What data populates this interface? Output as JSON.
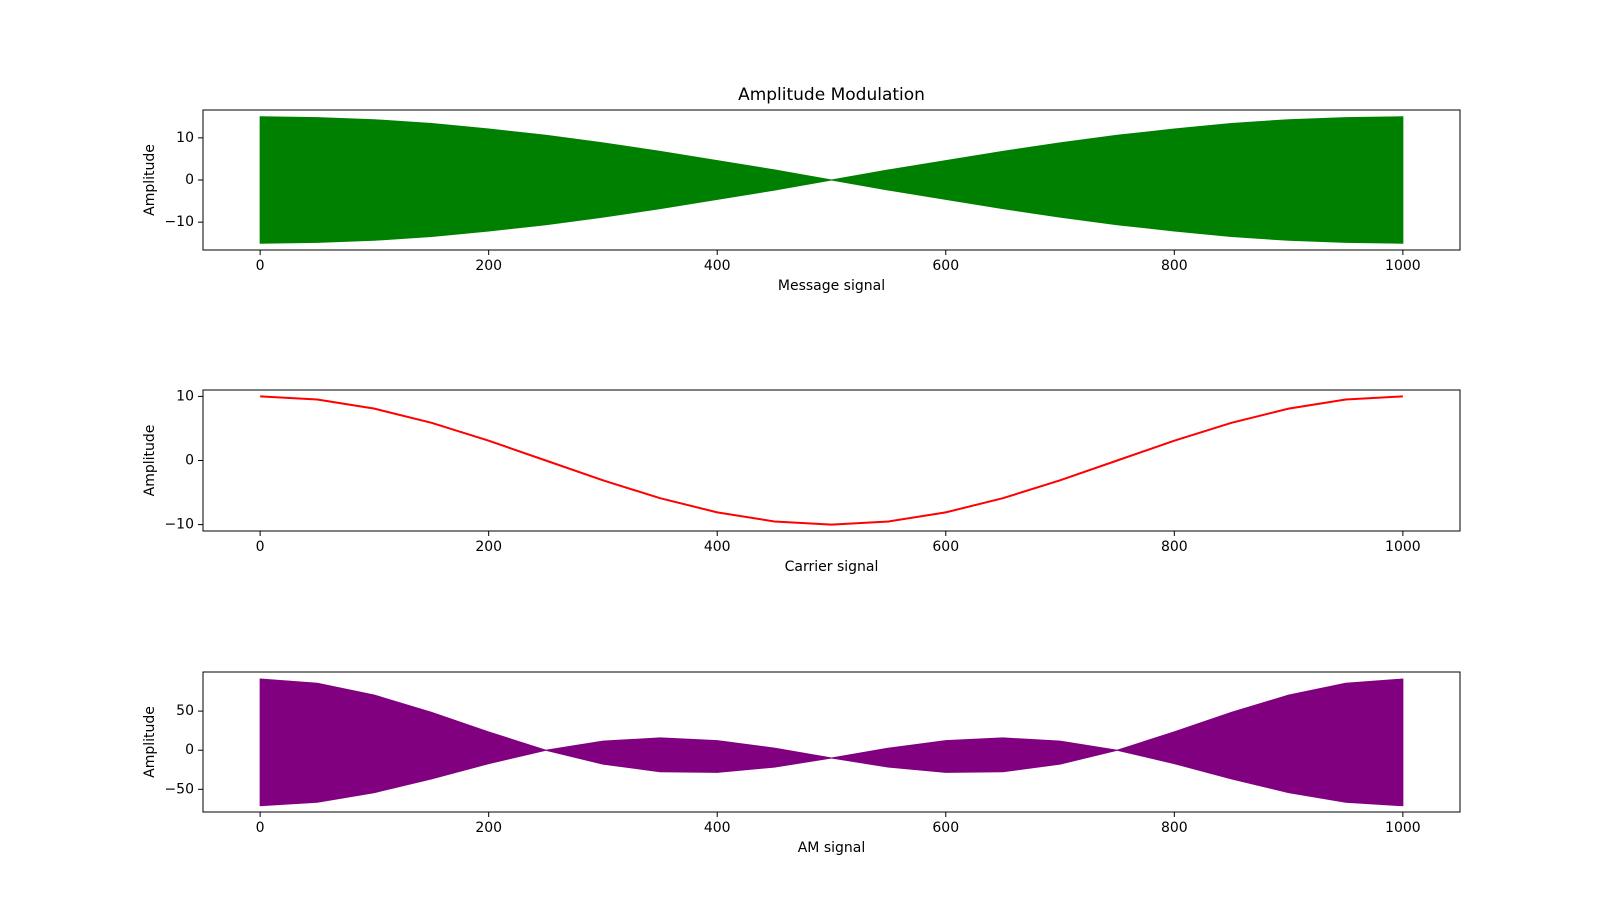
{
  "chart_data": [
    {
      "type": "band",
      "title": "Amplitude Modulation",
      "xlabel": "Message signal",
      "ylabel": "Amplitude",
      "color": "#008000",
      "x": [
        0,
        50,
        100,
        150,
        200,
        250,
        300,
        350,
        400,
        450,
        500,
        550,
        600,
        650,
        700,
        750,
        800,
        850,
        900,
        950,
        1000
      ],
      "upper": [
        15,
        14.8,
        14.3,
        13.4,
        12.1,
        10.6,
        8.8,
        6.8,
        4.6,
        2.4,
        0,
        2.4,
        4.6,
        6.8,
        8.8,
        10.6,
        12.1,
        13.4,
        14.3,
        14.8,
        15
      ],
      "lower": [
        -15,
        -14.8,
        -14.3,
        -13.4,
        -12.1,
        -10.6,
        -8.8,
        -6.8,
        -4.6,
        -2.4,
        0,
        -2.4,
        -4.6,
        -6.8,
        -8.8,
        -10.6,
        -12.1,
        -13.4,
        -14.3,
        -14.8,
        -15
      ],
      "xlim": [
        -50,
        1050
      ],
      "ylim": [
        -16.6,
        16.6
      ],
      "xticks": [
        0,
        200,
        400,
        600,
        800,
        1000
      ],
      "yticks": [
        {
          "value": -10,
          "label": "−10"
        },
        0,
        10
      ]
    },
    {
      "type": "line",
      "xlabel": "Carrier signal",
      "ylabel": "Amplitude",
      "color": "#ff0000",
      "x": [
        0,
        50,
        100,
        150,
        200,
        250,
        300,
        350,
        400,
        450,
        500,
        550,
        600,
        650,
        700,
        750,
        800,
        850,
        900,
        950,
        1000
      ],
      "values": [
        10,
        9.51,
        8.09,
        5.88,
        3.09,
        0,
        -3.09,
        -5.88,
        -8.09,
        -9.51,
        -10,
        -9.51,
        -8.09,
        -5.88,
        -3.09,
        0,
        3.09,
        5.88,
        8.09,
        9.51,
        10
      ],
      "xlim": [
        -50,
        1050
      ],
      "ylim": [
        -11,
        11
      ],
      "xticks": [
        0,
        200,
        400,
        600,
        800,
        1000
      ],
      "yticks": [
        {
          "value": -10,
          "label": "−10"
        },
        0,
        10
      ]
    },
    {
      "type": "band",
      "xlabel": "AM signal",
      "ylabel": "Amplitude",
      "color": "#800080",
      "x": [
        0,
        50,
        100,
        150,
        200,
        250,
        300,
        350,
        400,
        450,
        500,
        550,
        600,
        650,
        700,
        750,
        800,
        850,
        900,
        950,
        1000
      ],
      "upper": [
        91,
        85.6,
        70.4,
        48.4,
        23.4,
        0,
        11.6,
        15.7,
        12.2,
        2.6,
        -10,
        2.6,
        12.2,
        15.7,
        11.6,
        0,
        23.4,
        48.4,
        70.4,
        85.6,
        91
      ],
      "lower": [
        -71,
        -66.6,
        -54.2,
        -36.6,
        -17.2,
        0,
        -17.8,
        -27.5,
        -28.4,
        -21.6,
        -10,
        -21.6,
        -28.4,
        -27.5,
        -17.8,
        0,
        -17.2,
        -36.6,
        -54.2,
        -66.6,
        -71
      ],
      "xlim": [
        -50,
        1050
      ],
      "ylim": [
        -79,
        100
      ],
      "xticks": [
        0,
        200,
        400,
        600,
        800,
        1000
      ],
      "yticks": [
        {
          "value": -50,
          "label": "−50"
        },
        0,
        50
      ]
    }
  ]
}
